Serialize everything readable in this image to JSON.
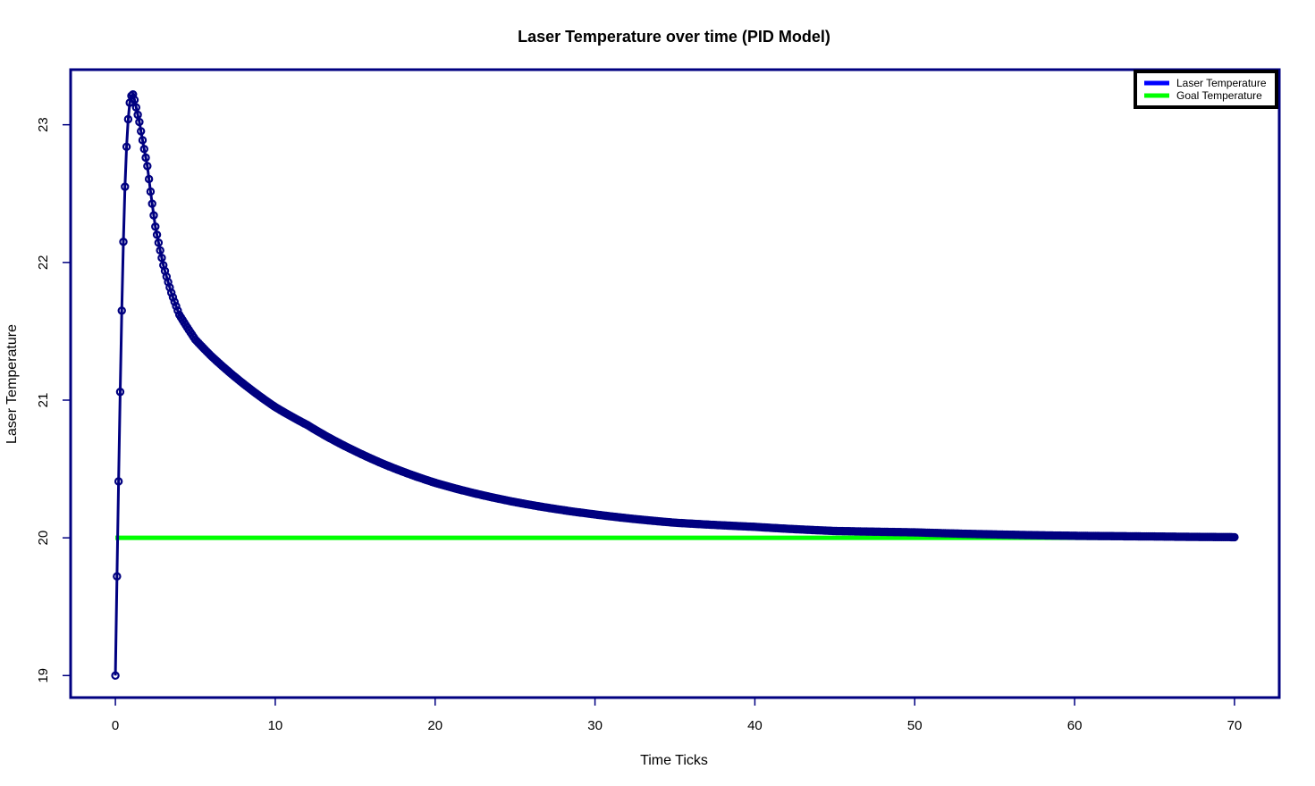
{
  "chart_data": {
    "type": "line",
    "title": "Laser Temperature over time (PID Model)",
    "xlabel": "Time Ticks",
    "ylabel": "Laser Temperature",
    "xlim": [
      -2.8,
      72.8
    ],
    "ylim": [
      18.84,
      23.4
    ],
    "x_ticks": [
      0,
      10,
      20,
      30,
      40,
      50,
      60,
      70
    ],
    "y_ticks": [
      19,
      20,
      21,
      22,
      23
    ],
    "x_step": 0.1,
    "grid": false,
    "legend_position": "top-right",
    "colors": {
      "laser": "#000080",
      "goal": "#00ff00",
      "legend_laser": "#0000ff",
      "frame": "#000080"
    },
    "series": [
      {
        "name": "Laser Temperature",
        "rise": {
          "x": [
            0,
            0.1,
            0.2,
            0.3,
            0.4,
            0.5,
            0.6,
            0.7,
            0.8,
            0.9,
            1.0,
            1.1,
            1.2
          ],
          "y": [
            19.0,
            19.72,
            20.41,
            21.06,
            21.65,
            22.15,
            22.55,
            22.84,
            23.04,
            23.16,
            23.21,
            23.22,
            23.18
          ]
        },
        "decay_points": [
          {
            "x": 1.2,
            "y": 23.18
          },
          {
            "x": 1.5,
            "y": 23.02
          },
          {
            "x": 2.0,
            "y": 22.7
          },
          {
            "x": 2.5,
            "y": 22.26
          },
          {
            "x": 3.0,
            "y": 21.98
          },
          {
            "x": 3.5,
            "y": 21.78
          },
          {
            "x": 4.0,
            "y": 21.62
          },
          {
            "x": 5.0,
            "y": 21.44
          },
          {
            "x": 6.0,
            "y": 21.32
          },
          {
            "x": 8.0,
            "y": 21.12
          },
          {
            "x": 10.0,
            "y": 20.95
          },
          {
            "x": 12.0,
            "y": 20.82
          },
          {
            "x": 15.0,
            "y": 20.63
          },
          {
            "x": 18.0,
            "y": 20.48
          },
          {
            "x": 20.0,
            "y": 20.4
          },
          {
            "x": 25.0,
            "y": 20.26
          },
          {
            "x": 30.0,
            "y": 20.17
          },
          {
            "x": 35.0,
            "y": 20.11
          },
          {
            "x": 40.0,
            "y": 20.08
          },
          {
            "x": 45.0,
            "y": 20.05
          },
          {
            "x": 50.0,
            "y": 20.04
          },
          {
            "x": 55.0,
            "y": 20.025
          },
          {
            "x": 60.0,
            "y": 20.015
          },
          {
            "x": 65.0,
            "y": 20.01
          },
          {
            "x": 70.0,
            "y": 20.005
          }
        ]
      },
      {
        "name": "Goal Temperature",
        "x": [
          0,
          70
        ],
        "y": [
          20,
          20
        ]
      }
    ]
  }
}
